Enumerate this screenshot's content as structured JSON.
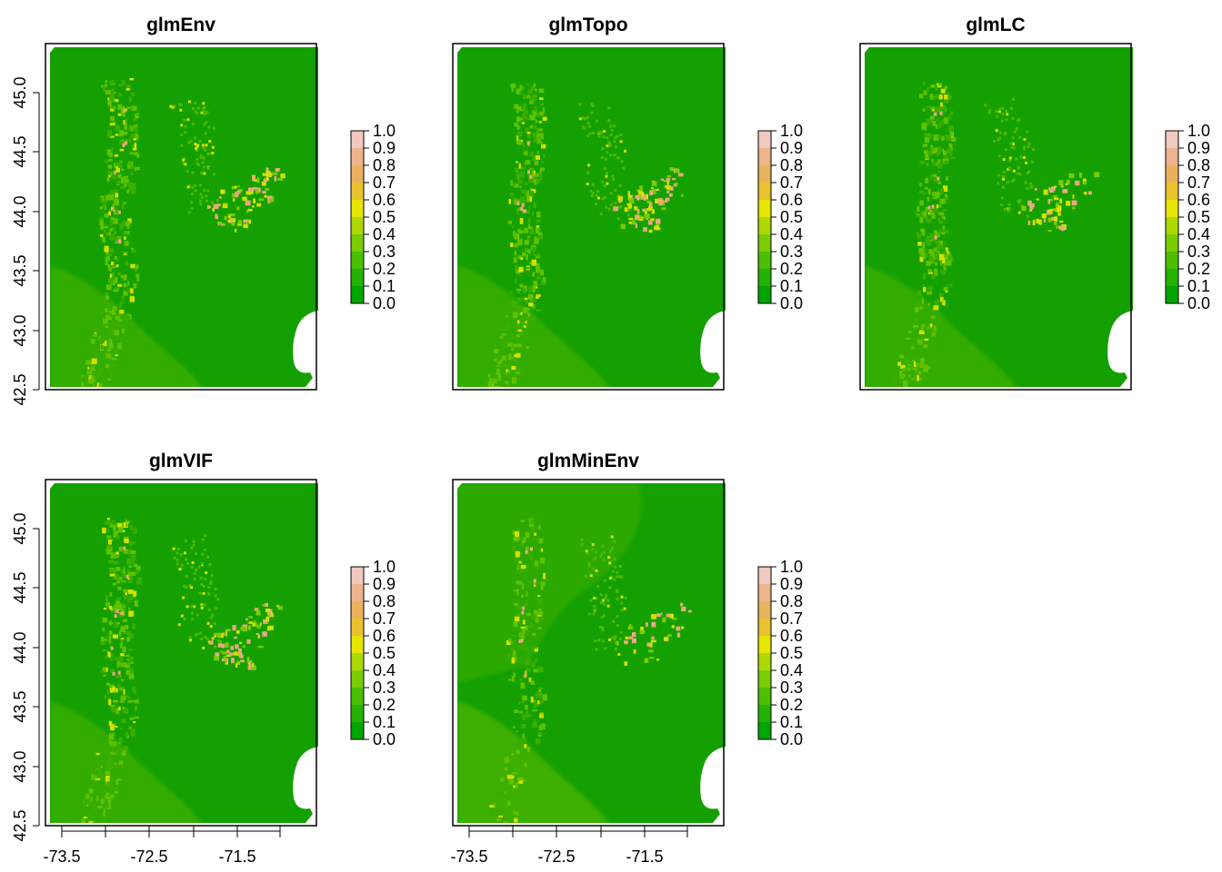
{
  "figure": {
    "panels": [
      {
        "title": "glmEnv",
        "peaks": "strong"
      },
      {
        "title": "glmTopo",
        "peaks": "strong"
      },
      {
        "title": "glmLC",
        "peaks": "medium"
      },
      {
        "title": "glmVIF",
        "peaks": "strong"
      },
      {
        "title": "glmMinEnv",
        "peaks": "weak"
      }
    ],
    "y_ticks": [
      "42.5",
      "43.0",
      "43.5",
      "44.0",
      "44.5",
      "45.0"
    ],
    "x_ticks": [
      "-73.5",
      "-72.5",
      "-71.5"
    ],
    "legend_labels": [
      "1.0",
      "0.9",
      "0.8",
      "0.7",
      "0.6",
      "0.5",
      "0.4",
      "0.3",
      "0.2",
      "0.1",
      "0.0"
    ],
    "legend_colors": [
      "#00A600",
      "#24B300",
      "#4CBF00",
      "#7ACC00",
      "#ADD800",
      "#E6E600",
      "#E8C32E",
      "#EBB25E",
      "#EDB48E",
      "#F0C9C0",
      "#F2F2F2"
    ],
    "base_green": "#14a000",
    "light_green": "#3fb000",
    "hot_color": "#e8a882",
    "yellow": "#d6e000"
  }
}
